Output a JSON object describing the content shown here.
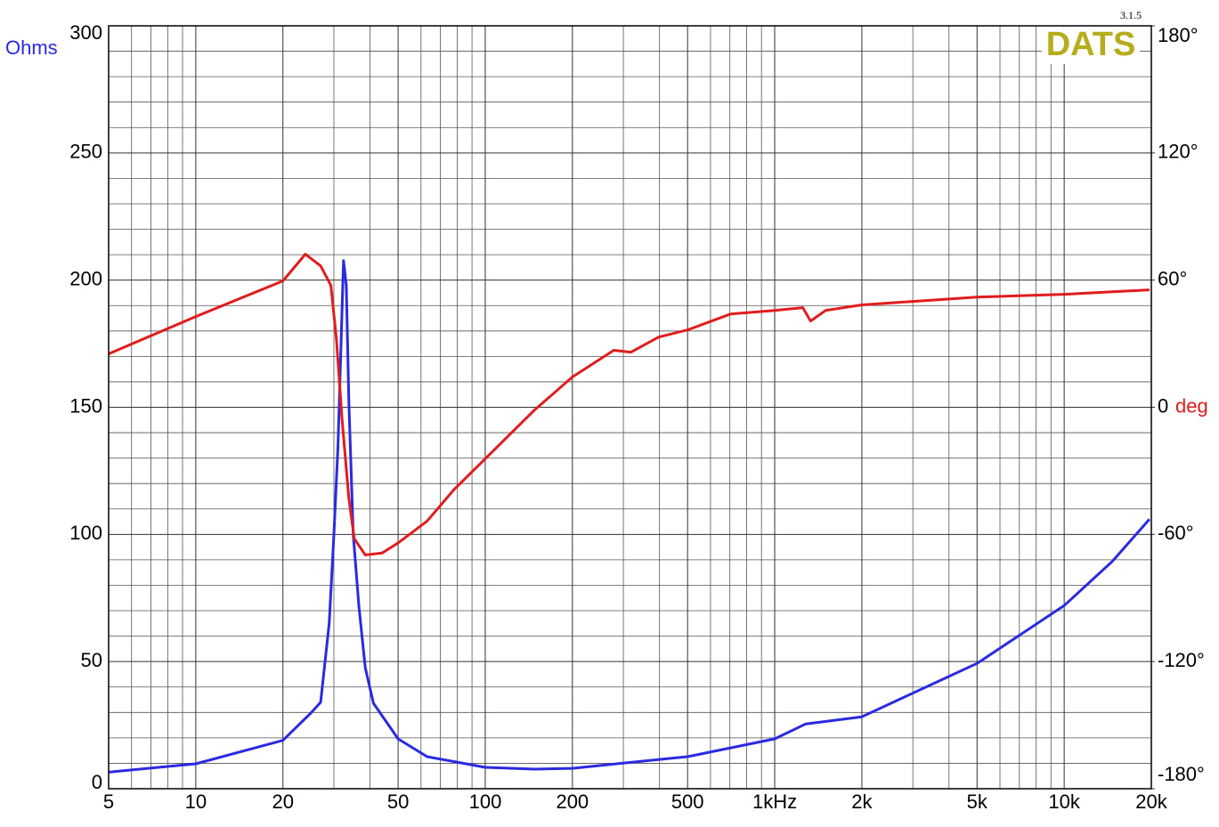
{
  "chart_data": {
    "type": "line",
    "ylabel": "Ohms",
    "y2label": "deg",
    "annotations": [
      "DATS",
      "3.1.5"
    ],
    "xscale": "log",
    "grid": true,
    "xlim": [
      5,
      20000
    ],
    "xticks": [
      5,
      10,
      20,
      50,
      100,
      200,
      500,
      {
        "value": 1000,
        "label": "1kHz"
      },
      {
        "value": 2000,
        "label": "2k"
      },
      {
        "value": 5000,
        "label": "5k"
      },
      {
        "value": 10000,
        "label": "10k"
      },
      {
        "value": 20000,
        "label": "20k"
      }
    ],
    "ylim": [
      0,
      300
    ],
    "yticks": [
      0,
      50,
      100,
      150,
      200,
      250,
      300
    ],
    "y2lim": [
      -180,
      180
    ],
    "y2ticks": [
      {
        "value": -180,
        "label": "-180°"
      },
      {
        "value": -120,
        "label": "-120°"
      },
      {
        "value": -60,
        "label": "-60°"
      },
      0,
      {
        "value": 60,
        "label": "60°"
      },
      {
        "value": 120,
        "label": "120°"
      },
      {
        "value": 180,
        "label": "180°"
      }
    ],
    "series": [
      {
        "color": "#2a2ae0",
        "axis": "y",
        "x": [
          5,
          10,
          20,
          25.1,
          27,
          28.9,
          30,
          31,
          32.4,
          33.1,
          33.8,
          35,
          36.6,
          38.5,
          41.1,
          50,
          63,
          100,
          148,
          200,
          297,
          500,
          1000,
          1280,
          2000,
          5000,
          10000,
          14700,
          19700
        ],
        "values": [
          6.5,
          9.8,
          19,
          30,
          34,
          65,
          100,
          135,
          207.7,
          198,
          152,
          100,
          72,
          47.6,
          33.6,
          19.6,
          12.6,
          8.4,
          7.7,
          8,
          10,
          12.6,
          19.6,
          25.5,
          28.3,
          49.3,
          72,
          89.5,
          106
        ]
      },
      {
        "color": "#e01c1c",
        "axis": "y2",
        "x": [
          5,
          10,
          20,
          23.9,
          27,
          29.3,
          30.6,
          32,
          33.8,
          35.3,
          38.5,
          44,
          50,
          63,
          77.8,
          100,
          148,
          200,
          278,
          319,
          397,
          500,
          703,
          1000,
          1250,
          1330,
          1500,
          2000,
          5000,
          10000,
          19700
        ],
        "values": [
          25.2,
          42.8,
          59.6,
          72.2,
          66.7,
          57.5,
          32.3,
          -5.5,
          -43,
          -62,
          -69.7,
          -68.8,
          -64,
          -53.7,
          -39,
          -24.3,
          -1.3,
          14.3,
          26.9,
          26,
          33.1,
          36.5,
          44,
          45.7,
          47,
          40.7,
          45.7,
          48.3,
          52,
          53.3,
          55.4
        ]
      }
    ]
  }
}
